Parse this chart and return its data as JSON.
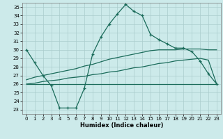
{
  "xlabel": "Humidex (Indice chaleur)",
  "background_color": "#cceaea",
  "grid_color": "#aacccc",
  "line_color": "#1a6b5a",
  "xlim": [
    -0.5,
    23.5
  ],
  "ylim": [
    22.5,
    35.5
  ],
  "xticks": [
    0,
    1,
    2,
    3,
    4,
    5,
    6,
    7,
    8,
    9,
    10,
    11,
    12,
    13,
    14,
    15,
    16,
    17,
    18,
    19,
    20,
    21,
    22,
    23
  ],
  "yticks": [
    23,
    24,
    25,
    26,
    27,
    28,
    29,
    30,
    31,
    32,
    33,
    34,
    35
  ],
  "series1_y": [
    30,
    28.5,
    27,
    25.8,
    23.2,
    23.2,
    23.2,
    25.5,
    29.5,
    31.5,
    33,
    34.2,
    35.3,
    34.5,
    34,
    31.8,
    31.2,
    30.7,
    30.2,
    30.2,
    29.8,
    28.7,
    27.2,
    26
  ],
  "series2_y": [
    26.5,
    26.8,
    27.0,
    27.2,
    27.4,
    27.6,
    27.8,
    28.1,
    28.3,
    28.6,
    28.9,
    29.1,
    29.3,
    29.5,
    29.7,
    29.9,
    30.0,
    30.0,
    30.0,
    30.1,
    30.1,
    30.1,
    30.0,
    30.0
  ],
  "series3_y": [
    26.0,
    26.1,
    26.3,
    26.4,
    26.5,
    26.7,
    26.8,
    26.9,
    27.1,
    27.2,
    27.4,
    27.5,
    27.7,
    27.9,
    28.0,
    28.2,
    28.4,
    28.5,
    28.7,
    28.8,
    28.9,
    29.0,
    28.8,
    26.0
  ],
  "series4_y": [
    26.0,
    26.0,
    26.0,
    26.0,
    26.0,
    26.0,
    26.0,
    26.0,
    26.0,
    26.0,
    26.0,
    26.0,
    26.0,
    26.0,
    26.0,
    26.0,
    26.0,
    26.0,
    26.0,
    26.0,
    26.0,
    26.0,
    26.0,
    26.0
  ]
}
